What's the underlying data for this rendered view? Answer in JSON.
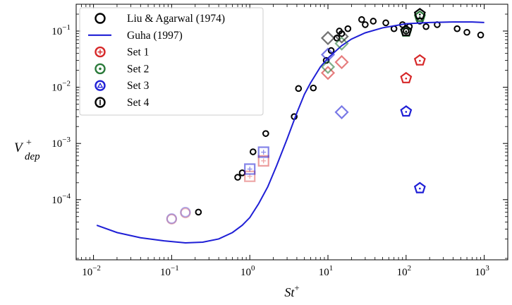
{
  "chart_data": {
    "type": "scatter",
    "xscale": "log",
    "yscale": "log",
    "xlim": [
      0.006,
      2000
    ],
    "ylim": [
      8.5e-06,
      0.3
    ],
    "xlabel": {
      "main": "St",
      "sup": "+"
    },
    "ylabel": {
      "main": "V",
      "sup": "+",
      "sub": "dep"
    },
    "xticks": [
      {
        "value": 0.01,
        "base": "10",
        "exp": "−2"
      },
      {
        "value": 0.1,
        "base": "10",
        "exp": "−1"
      },
      {
        "value": 1,
        "base": "10",
        "exp": "0"
      },
      {
        "value": 10,
        "base": "10",
        "exp": "1"
      },
      {
        "value": 100,
        "base": "10",
        "exp": "2"
      },
      {
        "value": 1000,
        "base": "10",
        "exp": "3"
      }
    ],
    "yticks": [
      {
        "value": 0.0001,
        "base": "10",
        "exp": "−4"
      },
      {
        "value": 0.001,
        "base": "10",
        "exp": "−3"
      },
      {
        "value": 0.01,
        "base": "10",
        "exp": "−2"
      },
      {
        "value": 0.1,
        "base": "10",
        "exp": "−1"
      }
    ],
    "legend_position": "top-left",
    "legend": [
      {
        "label": "Liu & Agarwal (1974)",
        "symbol": "circle",
        "color": "#000000"
      },
      {
        "label": "Guha (1997)",
        "symbol": "line",
        "color": "#1f1fd6"
      },
      {
        "label": "Set 1",
        "symbol": "circle-plus",
        "color": "#d62728"
      },
      {
        "label": "Set 2",
        "symbol": "circle-dot",
        "color": "#2a7a3a"
      },
      {
        "label": "Set 3",
        "symbol": "circle-tri",
        "color": "#1f1fd6"
      },
      {
        "label": "Set 4",
        "symbol": "circle-bar",
        "color": "#000000"
      }
    ],
    "series": [
      {
        "name": "Liu & Agarwal (1974)",
        "kind": "points",
        "color": "#000000",
        "points": [
          [
            0.22,
            6e-05
          ],
          [
            0.7,
            0.00025
          ],
          [
            0.8,
            0.0003
          ],
          [
            1.1,
            0.00071
          ],
          [
            1.6,
            0.0015
          ],
          [
            3.7,
            0.003
          ],
          [
            4.2,
            0.0095
          ],
          [
            6.5,
            0.0097
          ],
          [
            9.5,
            0.03
          ],
          [
            11,
            0.045
          ],
          [
            13,
            0.075
          ],
          [
            14,
            0.1
          ],
          [
            15,
            0.09
          ],
          [
            18,
            0.11
          ],
          [
            27,
            0.16
          ],
          [
            30,
            0.13
          ],
          [
            38,
            0.15
          ],
          [
            55,
            0.14
          ],
          [
            70,
            0.11
          ],
          [
            90,
            0.13
          ],
          [
            100,
            0.1
          ],
          [
            110,
            0.12
          ],
          [
            150,
            0.15
          ],
          [
            180,
            0.12
          ],
          [
            250,
            0.13
          ],
          [
            450,
            0.11
          ],
          [
            600,
            0.095
          ],
          [
            900,
            0.085
          ]
        ]
      },
      {
        "name": "Guha (1997)",
        "kind": "line",
        "color": "#1f1fd6",
        "points": [
          [
            0.011,
            3.5e-05
          ],
          [
            0.02,
            2.6e-05
          ],
          [
            0.04,
            2.1e-05
          ],
          [
            0.08,
            1.85e-05
          ],
          [
            0.15,
            1.7e-05
          ],
          [
            0.25,
            1.75e-05
          ],
          [
            0.4,
            2e-05
          ],
          [
            0.6,
            2.6e-05
          ],
          [
            0.8,
            3.5e-05
          ],
          [
            1,
            4.8e-05
          ],
          [
            1.3,
            8.5e-05
          ],
          [
            1.7,
            0.00017
          ],
          [
            2.2,
            0.0004
          ],
          [
            3,
            0.0012
          ],
          [
            4,
            0.0035
          ],
          [
            5,
            0.0075
          ],
          [
            6,
            0.012
          ],
          [
            7,
            0.017
          ],
          [
            8,
            0.023
          ],
          [
            10,
            0.033
          ],
          [
            15,
            0.055
          ],
          [
            20,
            0.072
          ],
          [
            30,
            0.093
          ],
          [
            50,
            0.114
          ],
          [
            100,
            0.135
          ],
          [
            200,
            0.142
          ],
          [
            400,
            0.145
          ],
          [
            700,
            0.145
          ],
          [
            1000,
            0.142
          ]
        ]
      },
      {
        "name": "Set 1",
        "kind": "markers",
        "color": "#d62728",
        "points": [
          {
            "x": 0.1,
            "y": 4.5e-05,
            "shape": "circle",
            "alpha": 0.3
          },
          {
            "x": 0.15,
            "y": 5.8e-05,
            "shape": "circle",
            "alpha": 0.3
          },
          {
            "x": 1,
            "y": 0.00026,
            "shape": "square",
            "alpha": 0.4
          },
          {
            "x": 1.5,
            "y": 0.00049,
            "shape": "square",
            "alpha": 0.45
          },
          {
            "x": 10,
            "y": 0.018,
            "shape": "diamond",
            "alpha": 0.6
          },
          {
            "x": 15,
            "y": 0.028,
            "shape": "diamond",
            "alpha": 0.6
          },
          {
            "x": 100,
            "y": 0.0145,
            "shape": "pentagon",
            "alpha": 1
          },
          {
            "x": 150,
            "y": 0.03,
            "shape": "pentagon",
            "alpha": 1
          }
        ]
      },
      {
        "name": "Set 2",
        "kind": "markers",
        "color": "#2a7a3a",
        "points": [
          {
            "x": 10,
            "y": 0.023,
            "shape": "diamond",
            "alpha": 0.6
          },
          {
            "x": 15,
            "y": 0.06,
            "shape": "diamond",
            "alpha": 0.6
          },
          {
            "x": 100,
            "y": 0.098,
            "shape": "pentagon",
            "alpha": 1
          },
          {
            "x": 150,
            "y": 0.18,
            "shape": "pentagon",
            "alpha": 1
          }
        ]
      },
      {
        "name": "Set 3",
        "kind": "markers",
        "color": "#1f1fd6",
        "points": [
          {
            "x": 0.1,
            "y": 4.6e-05,
            "shape": "circle",
            "alpha": 0.3
          },
          {
            "x": 0.15,
            "y": 6e-05,
            "shape": "circle",
            "alpha": 0.3
          },
          {
            "x": 1,
            "y": 0.00035,
            "shape": "square",
            "alpha": 0.55
          },
          {
            "x": 1.5,
            "y": 0.0007,
            "shape": "square",
            "alpha": 0.55
          },
          {
            "x": 10,
            "y": 0.038,
            "shape": "diamond",
            "alpha": 0.6
          },
          {
            "x": 15,
            "y": 0.0036,
            "shape": "diamond",
            "alpha": 0.6
          },
          {
            "x": 100,
            "y": 0.0037,
            "shape": "pentagon",
            "alpha": 1
          },
          {
            "x": 150,
            "y": 0.00016,
            "shape": "pentagon",
            "alpha": 1
          }
        ]
      },
      {
        "name": "Set 4",
        "kind": "markers",
        "color": "#000000",
        "points": [
          {
            "x": 10,
            "y": 0.075,
            "shape": "diamond",
            "alpha": 0.55
          },
          {
            "x": 15,
            "y": 0.08,
            "shape": "diamond",
            "alpha": 0.55
          },
          {
            "x": 100,
            "y": 0.1,
            "shape": "pentagon",
            "alpha": 1
          },
          {
            "x": 150,
            "y": 0.2,
            "shape": "pentagon",
            "alpha": 1
          }
        ]
      }
    ]
  }
}
